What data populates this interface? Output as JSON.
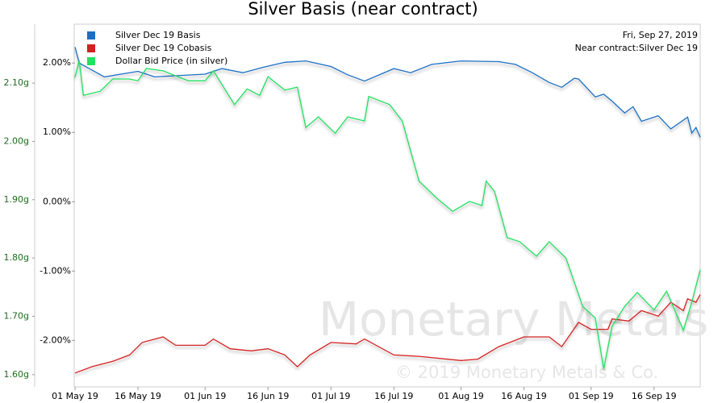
{
  "chart_data": {
    "type": "line",
    "title": "Silver Basis (near contract)",
    "annotations": [
      "Fri, Sep 27, 2019",
      "Near contract:Silver Dec 19"
    ],
    "watermark": [
      "Monetary Metals",
      "© 2019 Monetary Metals & Co."
    ],
    "legend": "top-left",
    "xlim": [
      "2019-05-01",
      "2019-09-27"
    ],
    "xticks": [
      {
        "value": "2019-05-01",
        "label": "01 May 19"
      },
      {
        "value": "2019-05-16",
        "label": "16 May 19"
      },
      {
        "value": "2019-06-01",
        "label": "01 Jun 19"
      },
      {
        "value": "2019-06-16",
        "label": "16 Jun 19"
      },
      {
        "value": "2019-07-01",
        "label": "01 Jul 19"
      },
      {
        "value": "2019-07-16",
        "label": "16 Jul 19"
      },
      {
        "value": "2019-08-01",
        "label": "01 Aug 19"
      },
      {
        "value": "2019-08-16",
        "label": "16 Aug 19"
      },
      {
        "value": "2019-09-01",
        "label": "01 Sep 19"
      },
      {
        "value": "2019-09-16",
        "label": "16 Sep 19"
      }
    ],
    "ylim": [
      -2.67,
      2.56
    ],
    "yticks": [
      {
        "value": -2,
        "label": "-2.00%"
      },
      {
        "value": -1,
        "label": "-1.00%"
      },
      {
        "value": 0,
        "label": "0.00%"
      },
      {
        "value": 1,
        "label": "1.00%"
      },
      {
        "value": 2,
        "label": "2.00%"
      }
    ],
    "y2lim": [
      1.579,
      2.201
    ],
    "y2ticks": [
      {
        "value": 1.6,
        "label": "1.60g"
      },
      {
        "value": 1.7,
        "label": "1.70g"
      },
      {
        "value": 1.8,
        "label": "1.80g"
      },
      {
        "value": 1.9,
        "label": "1.90g"
      },
      {
        "value": 2.0,
        "label": "2.00g"
      },
      {
        "value": 2.1,
        "label": "2.10g"
      }
    ],
    "series": [
      {
        "name": "Silver Dec 19 Basis",
        "color": "#1a6fc4",
        "x": [
          "2019-05-01",
          "2019-05-02",
          "2019-05-08",
          "2019-05-16",
          "2019-05-20",
          "2019-06-01",
          "2019-06-05",
          "2019-06-10",
          "2019-06-15",
          "2019-06-20",
          "2019-06-25",
          "2019-07-01",
          "2019-07-05",
          "2019-07-09",
          "2019-07-16",
          "2019-07-20",
          "2019-07-25",
          "2019-08-01",
          "2019-08-10",
          "2019-08-14",
          "2019-08-18",
          "2019-08-22",
          "2019-08-25",
          "2019-08-28",
          "2019-08-29",
          "2019-09-02",
          "2019-09-04",
          "2019-09-06",
          "2019-09-09",
          "2019-09-11",
          "2019-09-13",
          "2019-09-17",
          "2019-09-20",
          "2019-09-24",
          "2019-09-25",
          "2019-09-26",
          "2019-09-27"
        ],
        "values": [
          2.23,
          2.0,
          1.8,
          1.88,
          1.8,
          1.84,
          1.92,
          1.86,
          1.94,
          2.01,
          2.03,
          1.95,
          1.83,
          1.74,
          1.92,
          1.86,
          1.98,
          2.03,
          2.02,
          1.98,
          1.86,
          1.72,
          1.65,
          1.78,
          1.77,
          1.51,
          1.55,
          1.45,
          1.28,
          1.37,
          1.16,
          1.24,
          1.05,
          1.22,
          0.99,
          1.07,
          0.93
        ]
      },
      {
        "name": "Silver Dec 19 Cobasis",
        "color": "#d42020",
        "x": [
          "2019-05-01",
          "2019-05-05",
          "2019-05-10",
          "2019-05-14",
          "2019-05-17",
          "2019-05-22",
          "2019-05-25",
          "2019-06-01",
          "2019-06-03",
          "2019-06-07",
          "2019-06-12",
          "2019-06-16",
          "2019-06-20",
          "2019-06-23",
          "2019-06-26",
          "2019-07-01",
          "2019-07-07",
          "2019-07-09",
          "2019-07-16",
          "2019-07-22",
          "2019-08-01",
          "2019-08-05",
          "2019-08-10",
          "2019-08-16",
          "2019-08-22",
          "2019-08-25",
          "2019-08-29",
          "2019-09-01",
          "2019-09-05",
          "2019-09-06",
          "2019-09-10",
          "2019-09-13",
          "2019-09-17",
          "2019-09-20",
          "2019-09-23",
          "2019-09-24",
          "2019-09-26",
          "2019-09-27"
        ],
        "values": [
          -2.47,
          -2.38,
          -2.3,
          -2.21,
          -2.03,
          -1.95,
          -2.07,
          -2.07,
          -1.98,
          -2.12,
          -2.15,
          -2.12,
          -2.21,
          -2.38,
          -2.21,
          -2.03,
          -2.05,
          -1.98,
          -2.21,
          -2.23,
          -2.29,
          -2.27,
          -2.09,
          -1.95,
          -1.95,
          -2.09,
          -1.74,
          -1.84,
          -1.84,
          -1.69,
          -1.72,
          -1.57,
          -1.65,
          -1.45,
          -1.57,
          -1.4,
          -1.45,
          -1.34
        ]
      },
      {
        "name": "Dollar Bid Price (in silver)",
        "color": "#22e060",
        "axis": "y2",
        "x": [
          "2019-05-01",
          "2019-05-02",
          "2019-05-03",
          "2019-05-07",
          "2019-05-10",
          "2019-05-14",
          "2019-05-16",
          "2019-05-18",
          "2019-05-22",
          "2019-05-28",
          "2019-06-01",
          "2019-06-03",
          "2019-06-08",
          "2019-06-11",
          "2019-06-14",
          "2019-06-16",
          "2019-06-20",
          "2019-06-23",
          "2019-06-25",
          "2019-06-28",
          "2019-07-02",
          "2019-07-05",
          "2019-07-09",
          "2019-07-10",
          "2019-07-15",
          "2019-07-18",
          "2019-07-22",
          "2019-07-26",
          "2019-07-30",
          "2019-08-03",
          "2019-08-06",
          "2019-08-07",
          "2019-08-09",
          "2019-08-12",
          "2019-08-15",
          "2019-08-19",
          "2019-08-22",
          "2019-08-26",
          "2019-08-30",
          "2019-09-02",
          "2019-09-04",
          "2019-09-06",
          "2019-09-09",
          "2019-09-12",
          "2019-09-16",
          "2019-09-19",
          "2019-09-23",
          "2019-09-25",
          "2019-09-27"
        ],
        "values": [
          2.11,
          2.139,
          2.079,
          2.086,
          2.107,
          2.107,
          2.104,
          2.125,
          2.121,
          2.104,
          2.104,
          2.121,
          2.063,
          2.09,
          2.079,
          2.111,
          2.088,
          2.093,
          2.024,
          2.042,
          2.014,
          2.042,
          2.035,
          2.077,
          2.063,
          2.035,
          1.932,
          1.904,
          1.88,
          1.897,
          1.89,
          1.932,
          1.914,
          1.835,
          1.828,
          1.803,
          1.828,
          1.8,
          1.717,
          1.697,
          1.61,
          1.683,
          1.717,
          1.741,
          1.711,
          1.743,
          1.676,
          1.724,
          1.78
        ]
      }
    ]
  }
}
